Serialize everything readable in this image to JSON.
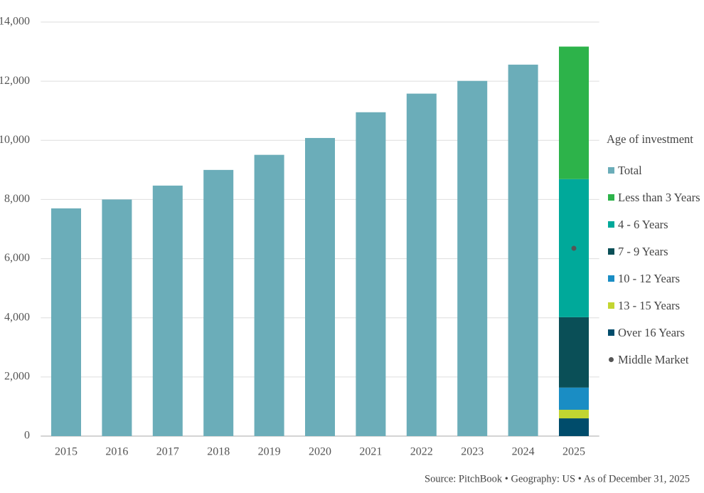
{
  "chart_data": {
    "type": "bar",
    "stacked": true,
    "legend_title": "Age of investment",
    "source": "Source: PitchBook • Geography: US • As of December 31, 2025",
    "categories": [
      "2015",
      "2016",
      "2017",
      "2018",
      "2019",
      "2020",
      "2021",
      "2022",
      "2023",
      "2024",
      "2025"
    ],
    "series": [
      {
        "name": "Total",
        "color": "#6badb9",
        "values": [
          7700,
          8000,
          8470,
          9000,
          9510,
          10080,
          10950,
          11580,
          12010,
          12560,
          null
        ]
      },
      {
        "name": "Over 16 Years",
        "color": "#004c6b",
        "values": [
          null,
          null,
          null,
          null,
          null,
          null,
          null,
          null,
          null,
          null,
          600
        ]
      },
      {
        "name": "13 - 15 Years",
        "color": "#c3d531",
        "values": [
          null,
          null,
          null,
          null,
          null,
          null,
          null,
          null,
          null,
          null,
          290
        ]
      },
      {
        "name": "10 - 12 Years",
        "color": "#1a8dc4",
        "values": [
          null,
          null,
          null,
          null,
          null,
          null,
          null,
          null,
          null,
          null,
          750
        ]
      },
      {
        "name": "7 - 9 Years",
        "color": "#0a4f57",
        "values": [
          null,
          null,
          null,
          null,
          null,
          null,
          null,
          null,
          null,
          null,
          2380
        ]
      },
      {
        "name": "4 - 6 Years",
        "color": "#00a99a",
        "values": [
          null,
          null,
          null,
          null,
          null,
          null,
          null,
          null,
          null,
          null,
          4670
        ]
      },
      {
        "name": "Less than 3 Years",
        "color": "#2db34a",
        "values": [
          null,
          null,
          null,
          null,
          null,
          null,
          null,
          null,
          null,
          null,
          4480
        ]
      },
      {
        "name": "Middle Market",
        "type": "scatter",
        "color": "#555555",
        "values": [
          null,
          null,
          null,
          null,
          null,
          null,
          null,
          null,
          null,
          null,
          6350
        ]
      }
    ],
    "legend_order": [
      0,
      6,
      5,
      4,
      3,
      2,
      1,
      7
    ],
    "ylim": [
      0,
      14000
    ],
    "yticks": [
      0,
      {
        "value": 2000,
        "label": "2,000"
      },
      {
        "value": 4000,
        "label": "4,000"
      },
      {
        "value": 6000,
        "label": "6,000"
      },
      {
        "value": 8000,
        "label": "8,000"
      },
      {
        "value": 10000,
        "label": "10,000"
      },
      {
        "value": 12000,
        "label": "12,000"
      },
      {
        "value": 14000,
        "label": "14,000"
      }
    ],
    "grid": true
  }
}
